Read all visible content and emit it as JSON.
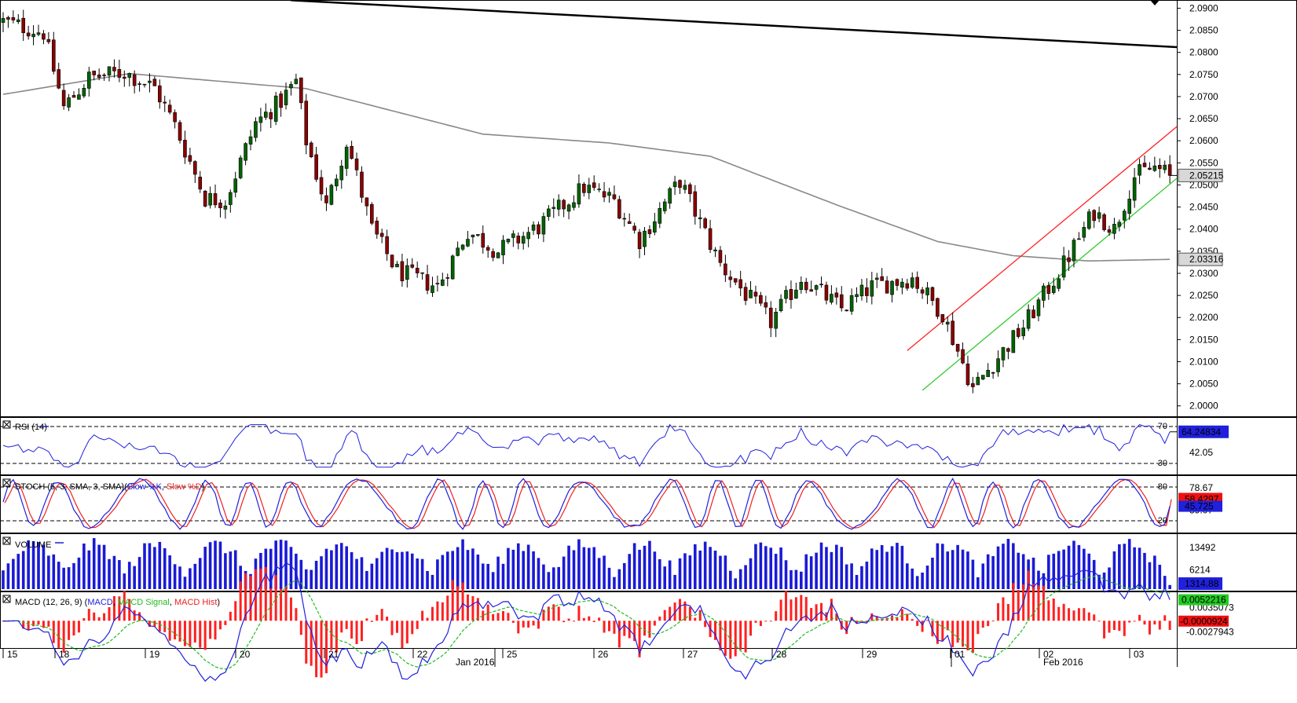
{
  "chart_data": {
    "type": "candlestick",
    "colors": {
      "up": "#006400",
      "down": "#8b0000",
      "ma": "#888888",
      "trend": "#000000",
      "channel_upper": "#ff2020",
      "channel_lower": "#33cc33",
      "rsi": "#2020dd",
      "stoch_k": "#2020dd",
      "stoch_d": "#ee2020",
      "volume": "#1a1ad6",
      "macd": "#2020dd",
      "signal": "#22bb22",
      "hist": "#ff2020",
      "current_price_box": "#d8d8d8",
      "blue_box": "#2020dd",
      "red_box": "#ee1111",
      "green_box": "#22cc22"
    },
    "price_axis": {
      "ylim": [
        1.998,
        2.0915
      ],
      "ticks": [
        "2.0900",
        "2.0850",
        "2.0800",
        "2.0750",
        "2.0700",
        "2.0650",
        "2.0600",
        "2.0550",
        "2.0500",
        "2.0450",
        "2.0400",
        "2.0350",
        "2.0300",
        "2.0250",
        "2.0200",
        "2.0150",
        "2.0100",
        "2.0050",
        "2.0000"
      ],
      "current_price": "2.05215",
      "ma_value": "2.03316"
    },
    "x_axis": {
      "days": [
        "15",
        "18",
        "19",
        "20",
        "21",
        "22",
        "25",
        "26",
        "27",
        "28",
        "29",
        "01",
        "02",
        "03"
      ],
      "months": [
        "Jan 2016",
        "Feb 2016"
      ]
    },
    "trendlines": {
      "long": {
        "start": 2.0918,
        "end": 2.0812
      },
      "channel_upper": {
        "start_bar": 1.8,
        "start": 2.0125,
        "end": 2.0632
      },
      "channel_lower": {
        "start_bar": 0.2,
        "start": 2.0035,
        "end": 2.0515
      }
    },
    "rsi": {
      "title": "RSI (14)",
      "level_high": "70",
      "level_low": "30",
      "mid_label": "42.05",
      "current": "64.24834"
    },
    "stoch": {
      "title_parts": [
        "STOCH (5, 3, SMA, 3, SMA)",
        "(",
        "Slow %K",
        ", ",
        "Slow %D",
        ")"
      ],
      "level_high": "80",
      "level_low": "20",
      "tick_label": "78.67",
      "tick_label_low": "39.07",
      "current_d": "58.4297",
      "current_k": "45.725"
    },
    "volume": {
      "title": "VOLUME",
      "ticks": [
        "13492",
        "6214"
      ],
      "current": "1314.88"
    },
    "macd": {
      "title_parts": [
        "MACD (12, 26, 9) (",
        "MACD",
        ", ",
        "MACD Signal",
        ", ",
        "MACD Hist",
        ")"
      ],
      "current_macd": "0.0052216",
      "label2": "0.0035073",
      "current_hist": "-0.0000924",
      "label4": "-0.0027943"
    }
  }
}
